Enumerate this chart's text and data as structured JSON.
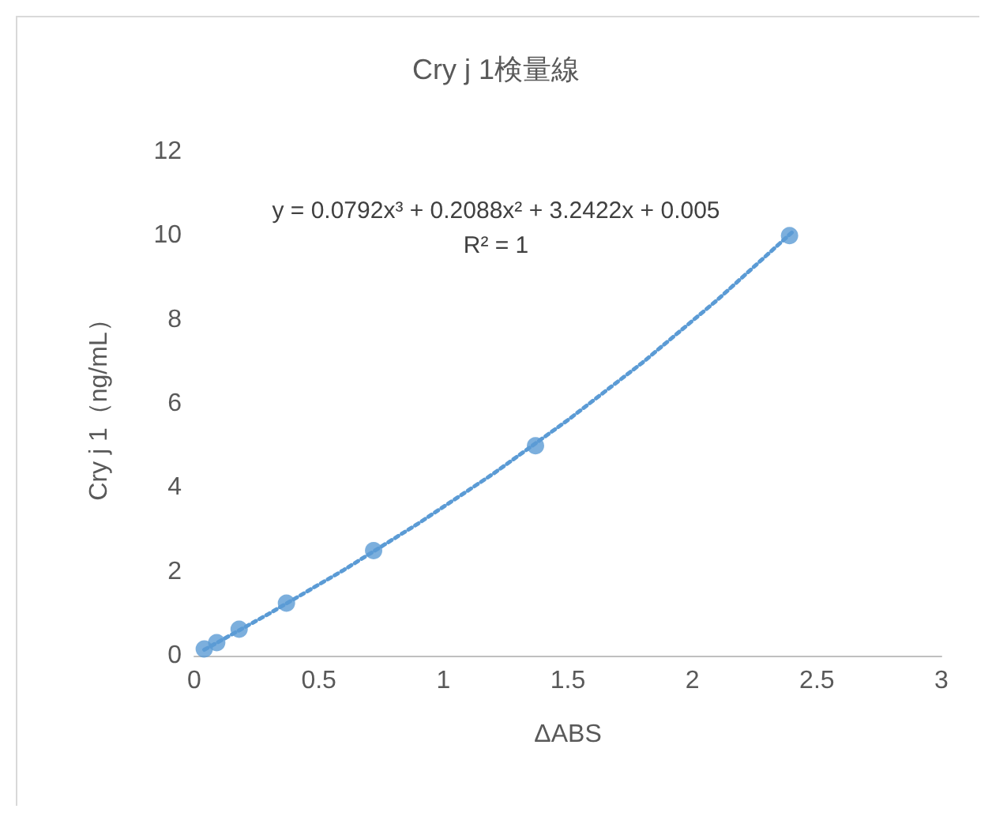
{
  "chart_data": {
    "type": "scatter",
    "title": "Cry j 1検量線",
    "xlabel": "ΔABS",
    "ylabel": "Cry j 1（ng/mL）",
    "xlim": [
      0,
      3
    ],
    "xticks": [
      0,
      0.5,
      1,
      1.5,
      2,
      2.5,
      3
    ],
    "ylim": [
      0,
      12
    ],
    "yticks": [
      0,
      2,
      4,
      6,
      8,
      10,
      12
    ],
    "grid": false,
    "annotations": [
      "y = 0.0792x³ + 0.2088x² + 3.2422x + 0.005",
      "R² = 1"
    ],
    "series": [
      {
        "type": "scatter",
        "color": "#5b9bd5",
        "marker": "circle",
        "x": [
          0.04,
          0.09,
          0.18,
          0.37,
          0.72,
          1.37,
          2.39
        ],
        "values": [
          0.16,
          0.31,
          0.63,
          1.25,
          2.5,
          5,
          10
        ]
      },
      {
        "type": "line",
        "color": "#5b9bd5",
        "line_style": "dotted",
        "marker": "none",
        "x": [
          0.04,
          0.3,
          0.6,
          0.9,
          1.2,
          1.5,
          1.8,
          2.1,
          2.4
        ],
        "values": [
          0.14,
          1.0,
          2.04,
          3.15,
          4.33,
          5.61,
          6.98,
          8.47,
          10.08
        ]
      }
    ]
  }
}
